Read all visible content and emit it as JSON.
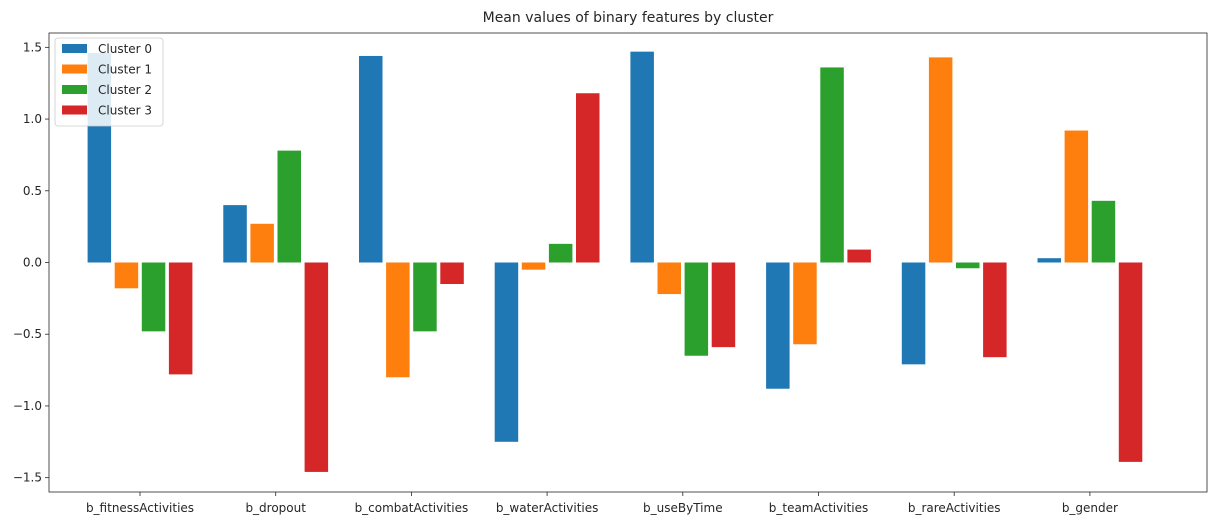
{
  "chart_data": {
    "type": "bar",
    "title": "Mean values of binary features by cluster",
    "xlabel": "",
    "ylabel": "",
    "ylim": [
      -1.6,
      1.6
    ],
    "yticks": [
      -1.5,
      -1.0,
      -0.5,
      0.0,
      0.5,
      1.0,
      1.5
    ],
    "ytick_labels": [
      "−1.5",
      "−1.0",
      "−0.5",
      "0.0",
      "0.5",
      "1.0",
      "1.5"
    ],
    "grid": false,
    "legend_position": "top-left",
    "categories": [
      "b_fitnessActivities",
      "b_dropout",
      "b_combatActivities",
      "b_waterActivities",
      "b_useByTime",
      "b_teamActivities",
      "b_rareActivities",
      "b_gender"
    ],
    "series": [
      {
        "name": "Cluster 0",
        "color": "#1f77b4",
        "values": [
          1.46,
          0.4,
          1.44,
          -1.25,
          1.47,
          -0.88,
          -0.71,
          0.03
        ]
      },
      {
        "name": "Cluster 1",
        "color": "#ff7f0e",
        "values": [
          -0.18,
          0.27,
          -0.8,
          -0.05,
          -0.22,
          -0.57,
          1.43,
          0.92
        ]
      },
      {
        "name": "Cluster 2",
        "color": "#2ca02c",
        "values": [
          -0.48,
          0.78,
          -0.48,
          0.13,
          -0.65,
          1.36,
          -0.04,
          0.43
        ]
      },
      {
        "name": "Cluster 3",
        "color": "#d62728",
        "values": [
          -0.78,
          -1.46,
          -0.15,
          1.18,
          -0.59,
          0.09,
          -0.66,
          -1.39
        ]
      }
    ]
  }
}
